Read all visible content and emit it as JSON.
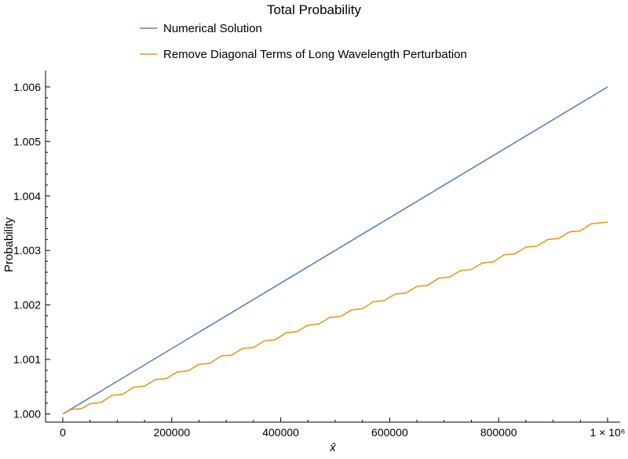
{
  "chart_data": {
    "type": "line",
    "title": "Total Probability",
    "xlabel": "x̂",
    "ylabel": "Probability",
    "xlim": [
      0,
      1000000
    ],
    "ylim": [
      0.99985,
      1.0063
    ],
    "x_ticks": [
      {
        "value": 0,
        "label": "0"
      },
      {
        "value": 200000,
        "label": "200000"
      },
      {
        "value": 400000,
        "label": "400000"
      },
      {
        "value": 600000,
        "label": "600000"
      },
      {
        "value": 800000,
        "label": "800000"
      },
      {
        "value": 1000000,
        "label": "1 × 10⁶"
      }
    ],
    "y_ticks": [
      {
        "value": 1.0,
        "label": "1.000"
      },
      {
        "value": 1.001,
        "label": "1.001"
      },
      {
        "value": 1.002,
        "label": "1.002"
      },
      {
        "value": 1.003,
        "label": "1.003"
      },
      {
        "value": 1.004,
        "label": "1.004"
      },
      {
        "value": 1.005,
        "label": "1.005"
      },
      {
        "value": 1.006,
        "label": "1.006"
      }
    ],
    "legend_position": "top",
    "series": [
      {
        "name": "Numerical Solution",
        "color": "#5e81b5",
        "x": [
          0,
          1000000
        ],
        "y": [
          1.0,
          1.006
        ]
      },
      {
        "name": "Remove Diagonal Terms of Long Wavelength Perturbation",
        "color": "#e19c24",
        "x": [
          0,
          15000,
          35000,
          50000,
          70000,
          90000,
          110000,
          130000,
          150000,
          170000,
          190000,
          210000,
          230000,
          250000,
          270000,
          290000,
          310000,
          330000,
          350000,
          370000,
          390000,
          410000,
          430000,
          450000,
          470000,
          490000,
          510000,
          530000,
          550000,
          570000,
          590000,
          610000,
          630000,
          650000,
          670000,
          690000,
          710000,
          730000,
          750000,
          770000,
          790000,
          810000,
          830000,
          850000,
          870000,
          890000,
          910000,
          930000,
          950000,
          970000,
          1000000
        ],
        "y": [
          1.0,
          1.00008,
          1.0001,
          1.00019,
          1.00021,
          1.00034,
          1.00036,
          1.00049,
          1.00051,
          1.00063,
          1.00065,
          1.00077,
          1.00079,
          1.00091,
          1.00093,
          1.00106,
          1.00108,
          1.0012,
          1.00122,
          1.00134,
          1.00136,
          1.00149,
          1.00151,
          1.00163,
          1.00165,
          1.00177,
          1.00179,
          1.00191,
          1.00193,
          1.00206,
          1.00208,
          1.0022,
          1.00222,
          1.00234,
          1.00236,
          1.00249,
          1.00251,
          1.00263,
          1.00265,
          1.00277,
          1.00279,
          1.00292,
          1.00294,
          1.00306,
          1.00308,
          1.0032,
          1.00322,
          1.00334,
          1.00336,
          1.00349,
          1.00352
        ]
      }
    ]
  }
}
